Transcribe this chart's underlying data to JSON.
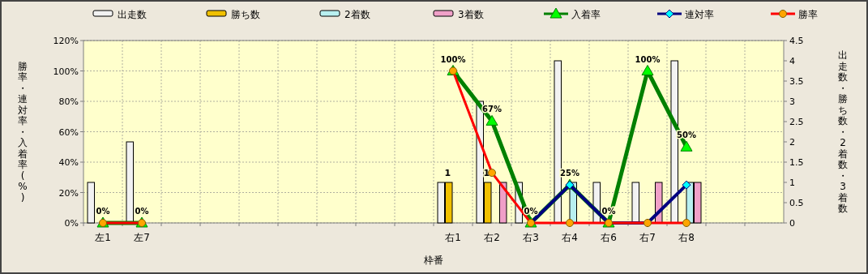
{
  "chart_data": {
    "type": "bar",
    "xlabel": "枠番",
    "ylabel": "勝率・連対率・入着率(%)",
    "y2label": "出走数・勝ち数・2着数・3着数",
    "categories": [
      "左1",
      "左7",
      null,
      null,
      null,
      null,
      null,
      null,
      null,
      "右1",
      "右2",
      "右3",
      "右4",
      "右6",
      "右7",
      "右8",
      null,
      null
    ],
    "series": [
      {
        "name": "出走数",
        "axis": "y2",
        "color": "#f2f2f2",
        "values": [
          1,
          2,
          null,
          null,
          null,
          null,
          null,
          null,
          null,
          1,
          3,
          1,
          4,
          1,
          1,
          4,
          null,
          null
        ]
      },
      {
        "name": "勝ち数",
        "axis": "y2",
        "color": "#f0c000",
        "values": [
          null,
          null,
          null,
          null,
          null,
          null,
          null,
          null,
          null,
          1,
          1,
          null,
          null,
          null,
          null,
          null,
          null,
          null
        ],
        "value_labels": [
          null,
          null,
          null,
          null,
          null,
          null,
          null,
          null,
          null,
          "1",
          "1",
          null,
          null,
          null,
          null,
          null,
          null,
          null
        ]
      },
      {
        "name": "2着数",
        "axis": "y2",
        "color": "#b8f0f0",
        "values": [
          null,
          null,
          null,
          null,
          null,
          null,
          null,
          null,
          null,
          null,
          null,
          null,
          1,
          null,
          null,
          1,
          null,
          null
        ]
      },
      {
        "name": "3着数",
        "axis": "y2",
        "color": "#f0a0c8",
        "values": [
          null,
          null,
          null,
          null,
          null,
          null,
          null,
          null,
          null,
          null,
          1,
          null,
          null,
          null,
          1,
          1,
          null,
          null
        ]
      },
      {
        "name": "入着率",
        "type": "line",
        "color": "#008000",
        "marker": "triangle",
        "values": [
          0,
          0,
          null,
          null,
          null,
          null,
          null,
          null,
          null,
          100,
          67,
          0,
          25,
          0,
          100,
          50,
          null,
          null
        ],
        "value_labels": [
          "0%",
          "0%",
          null,
          null,
          null,
          null,
          null,
          null,
          null,
          "100%",
          "67%",
          "0%",
          "25%",
          "0%",
          "100%",
          "50%",
          null,
          null
        ]
      },
      {
        "name": "連対率",
        "type": "line",
        "color": "#000080",
        "marker": "diamond",
        "values": [
          null,
          null,
          null,
          null,
          null,
          null,
          null,
          null,
          null,
          null,
          null,
          0,
          25,
          0,
          0,
          25,
          null,
          null
        ]
      },
      {
        "name": "勝率",
        "type": "line",
        "color": "#ff0000",
        "marker": "circle",
        "values": [
          0,
          0,
          null,
          null,
          null,
          null,
          null,
          null,
          null,
          100,
          33,
          0,
          0,
          0,
          0,
          0,
          null,
          null
        ]
      }
    ],
    "ylim": [
      0,
      120
    ],
    "yticks": [
      {
        "value": 0,
        "label": "0%"
      },
      {
        "value": 20,
        "label": "20%"
      },
      {
        "value": 40,
        "label": "40%"
      },
      {
        "value": 60,
        "label": "60%"
      },
      {
        "value": 80,
        "label": "80%"
      },
      {
        "value": 100,
        "label": "100%"
      },
      {
        "value": 120,
        "label": "120%"
      }
    ],
    "y2lim": [
      0,
      4.5
    ],
    "y2ticks": [
      0,
      0.5,
      1,
      1.5,
      2,
      2.5,
      3,
      3.5,
      4,
      4.5
    ],
    "grid": true,
    "legend": "top",
    "line_style": "solid"
  }
}
